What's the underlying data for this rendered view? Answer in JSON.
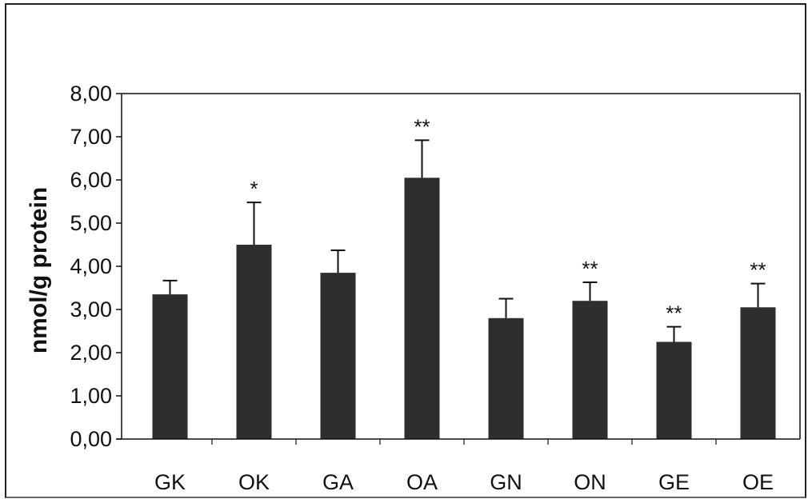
{
  "chart_data": {
    "type": "bar",
    "ylabel": "nmol/g protein",
    "xlabel": "",
    "title": "",
    "ylim": [
      0,
      8
    ],
    "yticks": [
      "0,00",
      "1,00",
      "2,00",
      "3,00",
      "4,00",
      "5,00",
      "6,00",
      "7,00",
      "8,00"
    ],
    "categories": [
      "GK",
      "OK",
      "GA",
      "OA",
      "GN",
      "ON",
      "GE",
      "OE"
    ],
    "values": [
      3.35,
      4.5,
      3.85,
      6.05,
      2.8,
      3.2,
      2.25,
      3.05
    ],
    "errors": [
      0.32,
      0.98,
      0.52,
      0.87,
      0.45,
      0.43,
      0.35,
      0.55
    ],
    "annotations": [
      "",
      "*",
      "",
      "**",
      "",
      "**",
      "**",
      "**"
    ],
    "grid": false,
    "bar_color": "#2e2e2e",
    "colors": {
      "bar": "#2e2e2e",
      "axis": "#111111",
      "frame": "#222222"
    }
  }
}
